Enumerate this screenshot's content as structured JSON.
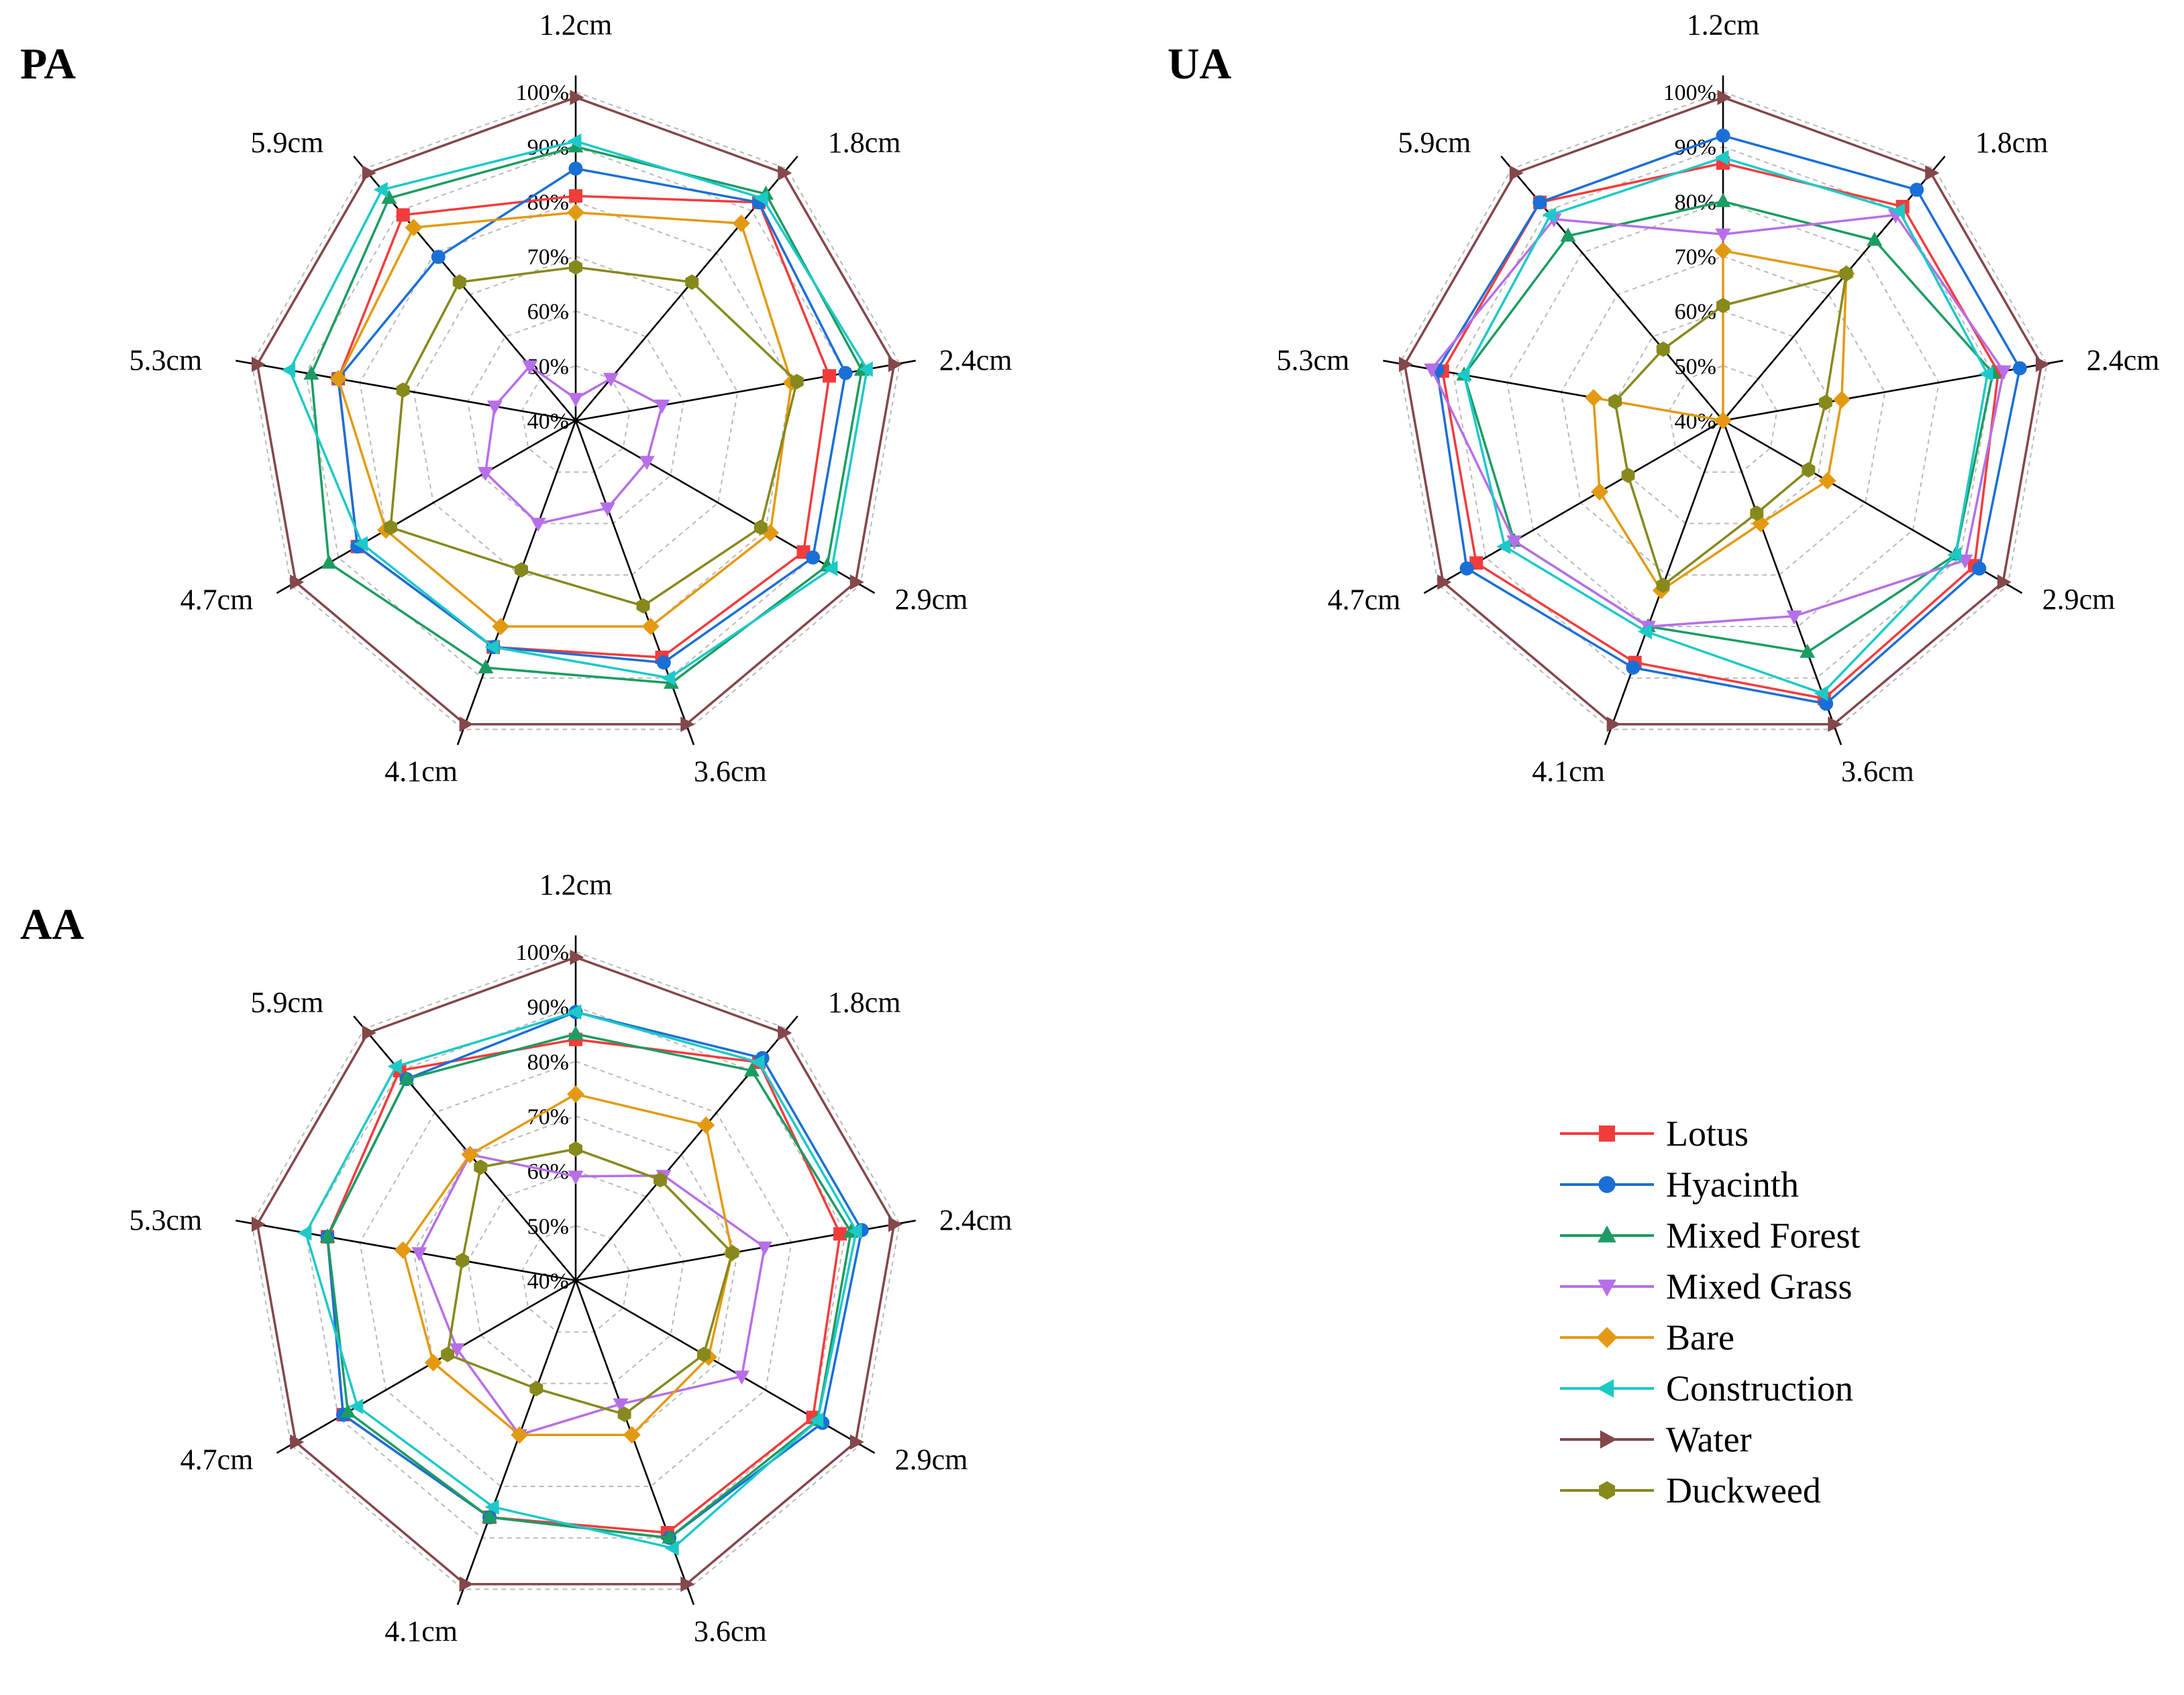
{
  "chart_data": [
    {
      "type": "radar",
      "title": "PA",
      "axes": [
        "1.2cm",
        "1.8cm",
        "2.4cm",
        "2.9cm",
        "3.6cm",
        "4.1cm",
        "4.7cm",
        "5.3cm",
        "5.9cm"
      ],
      "rlim": [
        40,
        100
      ],
      "ticks": [
        "40%",
        "50%",
        "60%",
        "70%",
        "80%",
        "90%",
        "100%"
      ],
      "series": [
        {
          "name": "Lotus",
          "values": [
            81,
            92,
            87,
            88,
            86,
            84,
            86,
            84,
            89
          ]
        },
        {
          "name": "Hyacinth",
          "values": [
            86,
            92,
            90,
            90,
            87,
            84,
            86,
            84,
            79
          ]
        },
        {
          "name": "Mixed Forest",
          "values": [
            90,
            94,
            93,
            93,
            91,
            88,
            92,
            89,
            93
          ]
        },
        {
          "name": "Mixed Grass",
          "values": [
            44,
            50,
            56,
            55,
            57,
            60,
            59,
            55,
            53
          ]
        },
        {
          "name": "Bare",
          "values": [
            78,
            87,
            80,
            81,
            80,
            80,
            80,
            84,
            86
          ]
        },
        {
          "name": "Construction",
          "values": [
            91,
            93,
            94,
            94,
            90,
            84,
            85,
            93,
            95
          ]
        },
        {
          "name": "Water",
          "values": [
            99,
            99,
            99,
            99,
            99,
            99,
            99,
            99,
            99
          ]
        },
        {
          "name": "Duckweed",
          "values": [
            68,
            73,
            81,
            79,
            76,
            69,
            79,
            72,
            73
          ]
        }
      ]
    },
    {
      "type": "radar",
      "title": "UA",
      "axes": [
        "1.2cm",
        "1.8cm",
        "2.4cm",
        "2.9cm",
        "3.6cm",
        "4.1cm",
        "4.7cm",
        "5.3cm",
        "5.9cm"
      ],
      "rlim": [
        40,
        100
      ],
      "ticks": [
        "40%",
        "50%",
        "60%",
        "70%",
        "80%",
        "90%",
        "100%"
      ],
      "series": [
        {
          "name": "Lotus",
          "values": [
            87,
            91,
            91,
            93,
            94,
            87,
            92,
            92,
            92
          ]
        },
        {
          "name": "Hyacinth",
          "values": [
            92,
            95,
            95,
            94,
            95,
            88,
            94,
            93,
            92
          ]
        },
        {
          "name": "Mixed Forest",
          "values": [
            80,
            83,
            90,
            89,
            85,
            80,
            84,
            88,
            84
          ]
        },
        {
          "name": "Mixed Grass",
          "values": [
            74,
            89,
            92,
            91,
            78,
            80,
            84,
            94,
            88
          ]
        },
        {
          "name": "Bare",
          "values": [
            71,
            75,
            62,
            62,
            60,
            73,
            66,
            64,
            40
          ]
        },
        {
          "name": "Construction",
          "values": [
            88,
            90,
            89,
            89,
            93,
            81,
            86,
            88,
            89
          ]
        },
        {
          "name": "Water",
          "values": [
            99,
            99,
            99,
            99,
            99,
            99,
            99,
            99,
            99
          ]
        },
        {
          "name": "Duckweed",
          "values": [
            61,
            75,
            59,
            58,
            58,
            72,
            60,
            60,
            57
          ]
        }
      ]
    },
    {
      "type": "radar",
      "title": "AA",
      "axes": [
        "1.2cm",
        "1.8cm",
        "2.4cm",
        "2.9cm",
        "3.6cm",
        "4.1cm",
        "4.7cm",
        "5.3cm",
        "5.9cm"
      ],
      "rlim": [
        40,
        100
      ],
      "ticks": [
        "40%",
        "50%",
        "60%",
        "70%",
        "80%",
        "90%",
        "100%"
      ],
      "series": [
        {
          "name": "Lotus",
          "values": [
            84,
            92,
            89,
            90,
            89,
            86,
            89,
            86,
            90
          ]
        },
        {
          "name": "Hyacinth",
          "values": [
            89,
            93,
            93,
            92,
            90,
            86,
            89,
            86,
            88
          ]
        },
        {
          "name": "Mixed Forest",
          "values": [
            85,
            90,
            91,
            91,
            90,
            86,
            88,
            86,
            88
          ]
        },
        {
          "name": "Mixed Grass",
          "values": [
            59,
            65,
            75,
            75,
            64,
            70,
            65,
            69,
            70
          ]
        },
        {
          "name": "Bare",
          "values": [
            74,
            77,
            69,
            68,
            70,
            70,
            70,
            72,
            70
          ]
        },
        {
          "name": "Construction",
          "values": [
            89,
            92,
            92,
            91,
            92,
            84,
            86,
            90,
            91
          ]
        },
        {
          "name": "Water",
          "values": [
            99,
            99,
            99,
            99,
            99,
            99,
            99,
            99,
            99
          ]
        },
        {
          "name": "Duckweed",
          "values": [
            64,
            64,
            69,
            67,
            66,
            61,
            67,
            61,
            67
          ]
        }
      ]
    }
  ],
  "legend": [
    {
      "name": "Lotus",
      "color": "#f23c3c",
      "marker": "square"
    },
    {
      "name": "Hyacinth",
      "color": "#1a6fd6",
      "marker": "circle"
    },
    {
      "name": "Mixed Forest",
      "color": "#1c9c62",
      "marker": "triangle-up"
    },
    {
      "name": "Mixed Grass",
      "color": "#b76fe8",
      "marker": "triangle-down"
    },
    {
      "name": "Bare",
      "color": "#e39a12",
      "marker": "diamond"
    },
    {
      "name": "Construction",
      "color": "#1cc9c8",
      "marker": "triangle-left"
    },
    {
      "name": "Water",
      "color": "#84474a",
      "marker": "triangle-right"
    },
    {
      "name": "Duckweed",
      "color": "#86891c",
      "marker": "hexagon"
    }
  ]
}
